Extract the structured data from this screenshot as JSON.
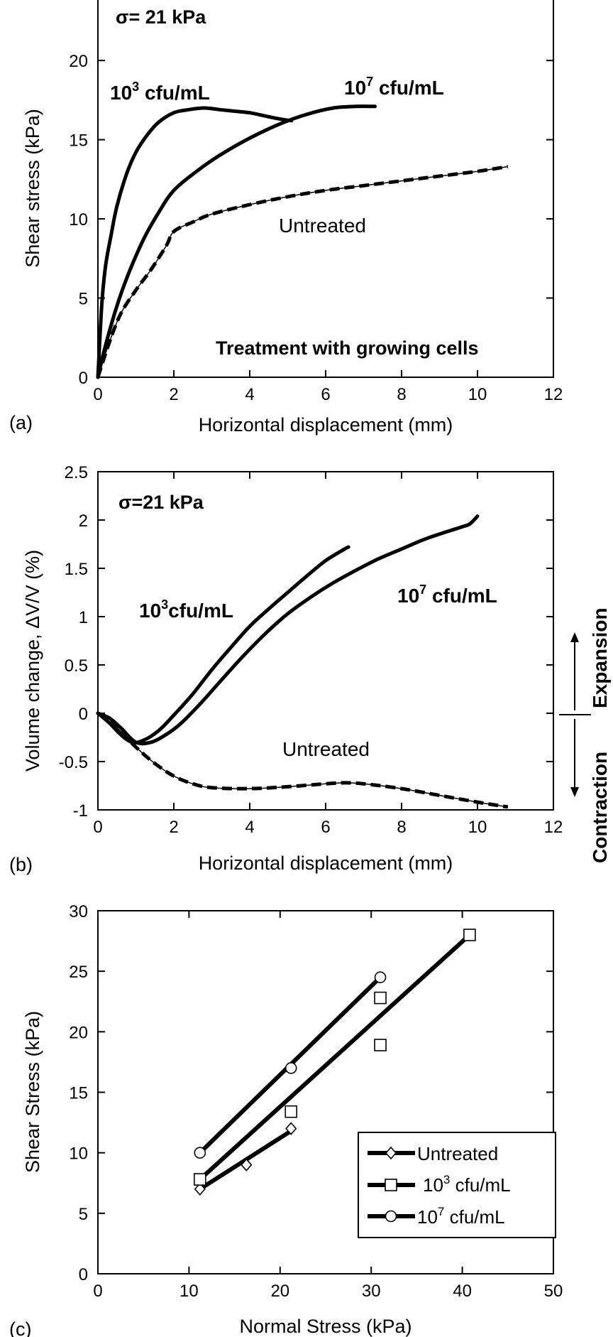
{
  "chart_data": [
    {
      "id": "a",
      "type": "line",
      "panel_label": "(a)",
      "xlabel": "Horizontal displacement (mm)",
      "ylabel": "Shear stress (kPa)",
      "xlim": [
        0,
        12
      ],
      "ylim": [
        0,
        24
      ],
      "xticks": [
        0,
        2,
        4,
        6,
        8,
        10,
        12
      ],
      "yticks": [
        0,
        5,
        10,
        15,
        20
      ],
      "annotations": {
        "normal_stress": "σ= 21 kPa",
        "note": "Treatment with growing cells"
      },
      "series": [
        {
          "name": "10",
          "label_sup": "3",
          "label_suffix": " cfu/mL",
          "style": "solid",
          "x": [
            0,
            0.1,
            0.2,
            0.35,
            0.5,
            0.75,
            1.0,
            1.3,
            1.6,
            2.0,
            2.4,
            2.8,
            3.2,
            3.6,
            4.0,
            4.4,
            4.8,
            5.1
          ],
          "y": [
            0,
            4.5,
            7.0,
            9.0,
            10.8,
            12.8,
            14.2,
            15.3,
            16.1,
            16.7,
            16.9,
            17.0,
            16.9,
            16.8,
            16.7,
            16.5,
            16.3,
            16.2
          ]
        },
        {
          "name": "10",
          "label_sup": "7",
          "label_suffix": " cfu/mL",
          "style": "solid",
          "x": [
            0,
            0.2,
            0.5,
            0.8,
            1.2,
            1.6,
            2.0,
            2.6,
            3.2,
            4.0,
            4.8,
            5.5,
            6.2,
            6.8,
            7.3
          ],
          "y": [
            0,
            2.0,
            4.5,
            6.5,
            8.7,
            10.4,
            11.8,
            13.0,
            14.0,
            15.1,
            16.0,
            16.6,
            17.0,
            17.1,
            17.1
          ]
        },
        {
          "name": "Untreated",
          "style": "dashed",
          "x": [
            0,
            0.3,
            0.6,
            1.0,
            1.4,
            1.8,
            2.0,
            2.5,
            3.0,
            4.0,
            5.0,
            6.0,
            7.0,
            8.0,
            9.0,
            10.0,
            10.8
          ],
          "y": [
            0,
            2.2,
            4.0,
            5.5,
            6.8,
            8.3,
            9.2,
            9.8,
            10.3,
            10.9,
            11.4,
            11.8,
            12.1,
            12.4,
            12.7,
            13.0,
            13.3
          ]
        }
      ]
    },
    {
      "id": "b",
      "type": "line",
      "panel_label": "(b)",
      "xlabel": "Horizontal displacement (mm)",
      "ylabel": "Volume change, ΔV/V (%)",
      "xlim": [
        0,
        12
      ],
      "ylim": [
        -1,
        2.5
      ],
      "xticks": [
        0,
        2,
        4,
        6,
        8,
        10,
        12
      ],
      "yticks": [
        -1,
        -0.5,
        0,
        0.5,
        1,
        1.5,
        2,
        2.5
      ],
      "annotations": {
        "normal_stress": "σ=21 kPa",
        "expansion": "Expansion",
        "contraction": "Contraction"
      },
      "series": [
        {
          "name": "10",
          "label_sup": "3",
          "label_suffix": "cfu/mL",
          "style": "solid",
          "x": [
            0,
            0.3,
            0.6,
            0.9,
            1.2,
            1.6,
            2.0,
            2.5,
            3.0,
            3.5,
            4.0,
            4.5,
            5.0,
            5.5,
            6.0,
            6.5,
            6.6
          ],
          "y": [
            0,
            -0.1,
            -0.22,
            -0.3,
            -0.28,
            -0.18,
            -0.02,
            0.2,
            0.45,
            0.68,
            0.9,
            1.08,
            1.25,
            1.42,
            1.58,
            1.7,
            1.72
          ]
        },
        {
          "name": "10",
          "label_sup": "7",
          "label_suffix": " cfu/mL",
          "style": "solid",
          "x": [
            0,
            0.3,
            0.6,
            1.0,
            1.4,
            1.8,
            2.2,
            2.7,
            3.2,
            3.8,
            4.4,
            5.0,
            5.6,
            6.2,
            6.8,
            7.4,
            8.0,
            8.6,
            9.2,
            9.6,
            9.8,
            10.0
          ],
          "y": [
            0,
            -0.05,
            -0.15,
            -0.3,
            -0.3,
            -0.22,
            -0.1,
            0.1,
            0.32,
            0.58,
            0.82,
            1.03,
            1.2,
            1.35,
            1.48,
            1.6,
            1.7,
            1.8,
            1.88,
            1.93,
            1.96,
            2.04
          ]
        },
        {
          "name": "Untreated",
          "style": "dashed",
          "x": [
            0,
            0.5,
            1.0,
            1.5,
            2.0,
            2.5,
            3.0,
            4.0,
            5.0,
            6.0,
            6.5,
            7.0,
            8.0,
            9.0,
            10.0,
            10.8
          ],
          "y": [
            0,
            -0.15,
            -0.35,
            -0.52,
            -0.65,
            -0.73,
            -0.77,
            -0.78,
            -0.76,
            -0.73,
            -0.72,
            -0.73,
            -0.78,
            -0.85,
            -0.92,
            -0.97
          ]
        }
      ]
    },
    {
      "id": "c",
      "type": "scatter",
      "panel_label": "(c)",
      "xlabel": "Normal Stress (kPa)",
      "ylabel": "Shear Stress (kPa)",
      "xlim": [
        0,
        50
      ],
      "ylim": [
        0,
        30
      ],
      "xticks": [
        0,
        10,
        20,
        30,
        40,
        50
      ],
      "yticks": [
        0,
        5,
        10,
        15,
        20,
        25,
        30
      ],
      "legend_position": "bottom-right",
      "series": [
        {
          "name": "Untreated",
          "marker": "diamond",
          "points": [
            [
              11.2,
              7.0
            ],
            [
              16.3,
              9.0
            ],
            [
              21.2,
              12.0
            ]
          ],
          "fit": [
            [
              11.2,
              7.0
            ],
            [
              21.2,
              11.8
            ]
          ]
        },
        {
          "name": "10",
          "label_sup": "3",
          "label_suffix": " cfu/mL",
          "marker": "square",
          "points": [
            [
              11.2,
              7.8
            ],
            [
              21.2,
              13.4
            ],
            [
              31.0,
              18.9
            ],
            [
              31.0,
              22.8
            ],
            [
              40.8,
              28.0
            ]
          ],
          "fit": [
            [
              11.2,
              7.8
            ],
            [
              40.8,
              28.0
            ]
          ]
        },
        {
          "name": "10",
          "label_sup": "7",
          "label_suffix": " cfu/mL",
          "marker": "circle",
          "points": [
            [
              11.2,
              10.0
            ],
            [
              21.2,
              17.0
            ],
            [
              31.0,
              24.5
            ]
          ],
          "fit": [
            [
              11.2,
              10.0
            ],
            [
              31.0,
              24.5
            ]
          ]
        }
      ]
    }
  ]
}
